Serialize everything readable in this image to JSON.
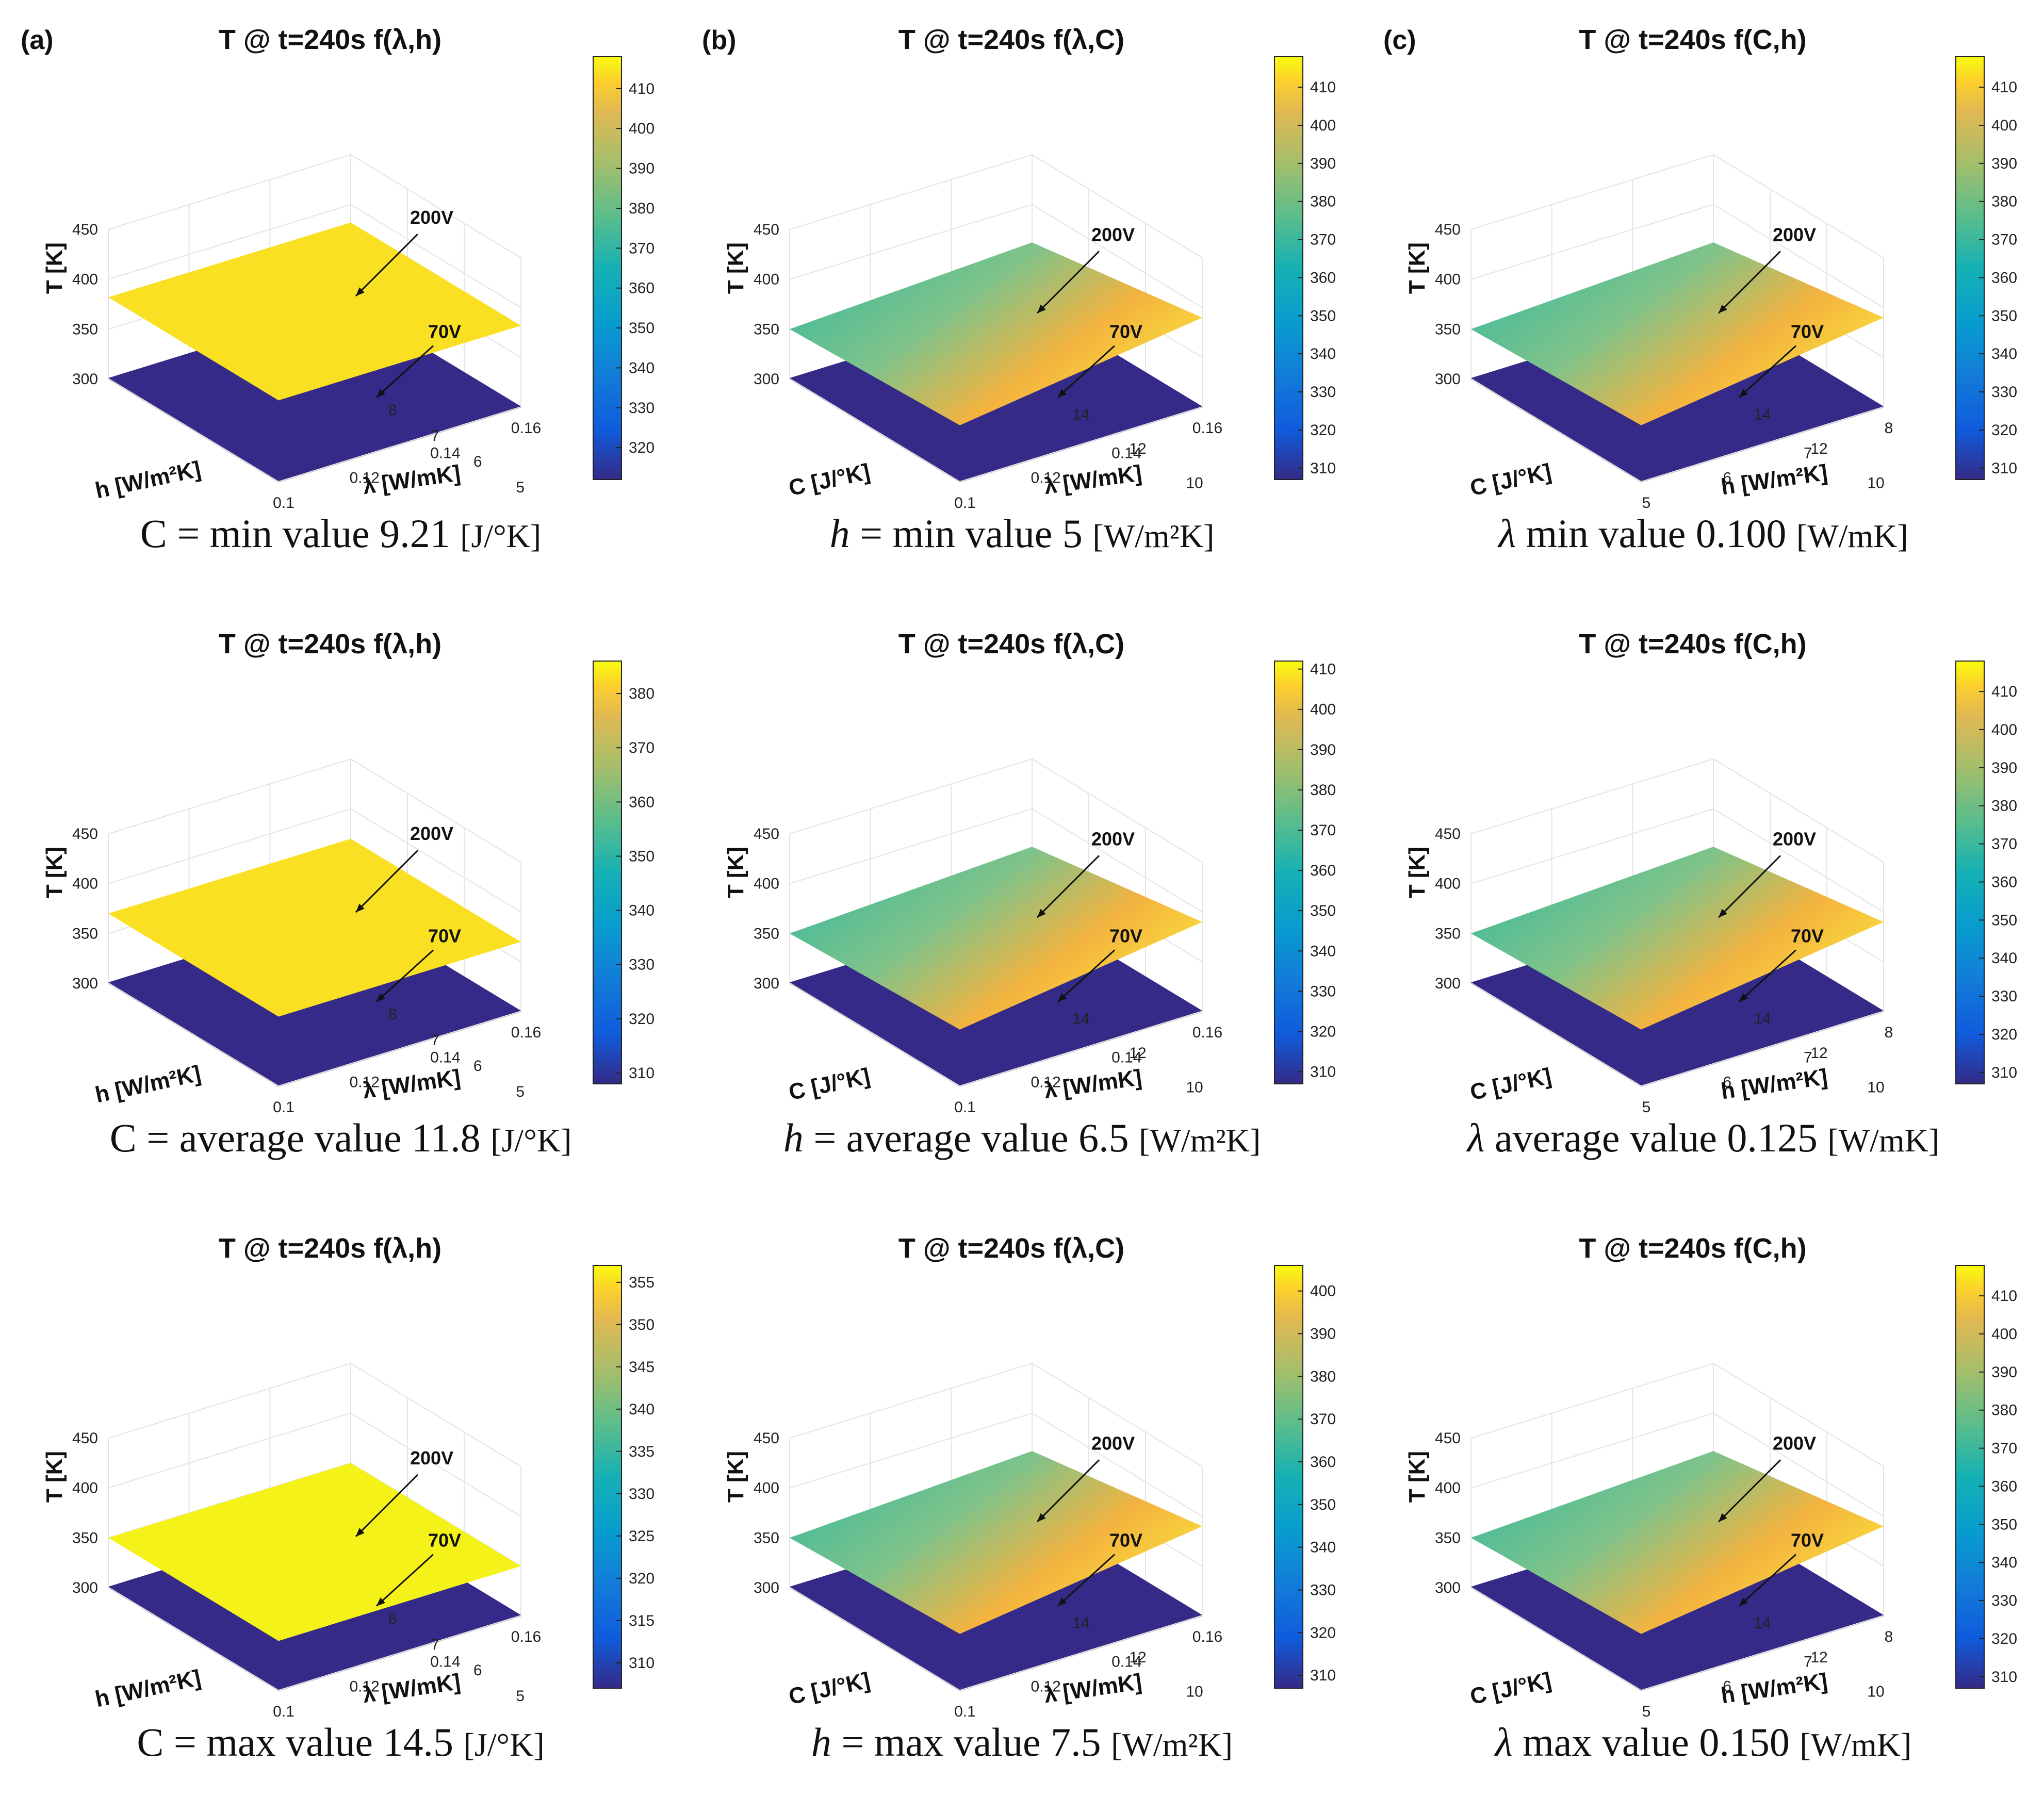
{
  "palette": {
    "low_plane": "#352a87",
    "yellow_plane": "#f9e022",
    "bright_yellow": "#f5f21a",
    "orange_mid": "#f4b33f",
    "teal": "#2db8a0",
    "axis": "#222222",
    "grid": "#e4e4e4"
  },
  "panels": [
    {
      "key": "a1",
      "label": "(a)",
      "type": "lh",
      "title": "T @ t=240s f(λ,h)",
      "cbar": [
        320,
        330,
        340,
        350,
        360,
        370,
        380,
        390,
        400,
        410
      ],
      "cmin": 312,
      "cmax": 418,
      "upperT": 382,
      "lowerT": 301,
      "style": "flat-yellow",
      "lbl200": "200V",
      "lbl70": "70V",
      "caption": {
        "pre": "C = min value 9.21 ",
        "unit": "[J/°K]"
      }
    },
    {
      "key": "b1",
      "label": "(b)",
      "type": "lc",
      "title": "T @ t=240s f(λ,C)",
      "cbar": [
        310,
        320,
        330,
        340,
        350,
        360,
        370,
        380,
        390,
        400,
        410
      ],
      "cmin": 307,
      "cmax": 418,
      "upperT": 362,
      "lowerT": 301,
      "style": "gradient",
      "lbl200": "200V",
      "lbl70": "70V",
      "caption": {
        "var": "h",
        "pre": " = min value 5 ",
        "unit": "[W/m²K]"
      }
    },
    {
      "key": "c1",
      "label": "(c)",
      "type": "ch",
      "title": "T @ t=240s f(C,h)",
      "cbar": [
        310,
        320,
        330,
        340,
        350,
        360,
        370,
        380,
        390,
        400,
        410
      ],
      "cmin": 307,
      "cmax": 418,
      "upperT": 362,
      "lowerT": 301,
      "style": "gradient",
      "lbl200": "200V",
      "lbl70": "70V",
      "caption": {
        "var": "λ",
        "pre": " min value 0.100 ",
        "unit": "[W/mK]"
      }
    },
    {
      "key": "a2",
      "label": "",
      "type": "lh",
      "title": "T @ t=240s f(λ,h)",
      "cbar": [
        310,
        320,
        330,
        340,
        350,
        360,
        370,
        380
      ],
      "cmin": 308,
      "cmax": 386,
      "upperT": 370,
      "lowerT": 301,
      "style": "flat-yellow",
      "lbl200": "200V",
      "lbl70": "70V",
      "caption": {
        "pre": "C = average value 11.8 ",
        "unit": "[J/°K]"
      }
    },
    {
      "key": "b2",
      "label": "",
      "type": "lc",
      "title": "T @ t=240s f(λ,C)",
      "cbar": [
        310,
        320,
        330,
        340,
        350,
        360,
        370,
        380,
        390,
        400,
        410
      ],
      "cmin": 307,
      "cmax": 412,
      "upperT": 362,
      "lowerT": 301,
      "style": "gradient",
      "lbl200": "200V",
      "lbl70": "70V",
      "caption": {
        "var": "h",
        "pre": " = average value 6.5 ",
        "unit": "[W/m²K]"
      }
    },
    {
      "key": "c2",
      "label": "",
      "type": "ch",
      "title": "T @ t=240s f(C,h)",
      "cbar": [
        310,
        320,
        330,
        340,
        350,
        360,
        370,
        380,
        390,
        400,
        410
      ],
      "cmin": 307,
      "cmax": 418,
      "upperT": 362,
      "lowerT": 301,
      "style": "gradient",
      "lbl200": "200V",
      "lbl70": "70V",
      "caption": {
        "var": "λ",
        "pre": " average value 0.125 ",
        "unit": "[W/mK]"
      }
    },
    {
      "key": "a3",
      "label": "",
      "type": "lh",
      "title": "T @ t=240s f(λ,h)",
      "cbar": [
        310,
        315,
        320,
        325,
        330,
        335,
        340,
        345,
        350,
        355
      ],
      "cmin": 307,
      "cmax": 357,
      "upperT": 350,
      "lowerT": 301,
      "style": "bright-yellow",
      "lbl200": "200V",
      "lbl70": "70V",
      "caption": {
        "pre": "C = max value 14.5 ",
        "unit": "[J/°K]"
      }
    },
    {
      "key": "b3",
      "label": "",
      "type": "lc",
      "title": "T @ t=240s f(λ,C)",
      "cbar": [
        310,
        320,
        330,
        340,
        350,
        360,
        370,
        380,
        390,
        400
      ],
      "cmin": 307,
      "cmax": 406,
      "upperT": 362,
      "lowerT": 301,
      "style": "gradient",
      "lbl200": "200V",
      "lbl70": "70V",
      "caption": {
        "var": "h",
        "pre": " = max value 7.5 ",
        "unit": "[W/m²K]"
      }
    },
    {
      "key": "c3",
      "label": "",
      "type": "ch",
      "title": "T @ t=240s f(C,h)",
      "cbar": [
        310,
        320,
        330,
        340,
        350,
        360,
        370,
        380,
        390,
        400,
        410
      ],
      "cmin": 307,
      "cmax": 418,
      "upperT": 362,
      "lowerT": 301,
      "style": "gradient",
      "lbl200": "200V",
      "lbl70": "70V",
      "caption": {
        "var": "λ",
        "pre": " max value 0.150 ",
        "unit": "[W/mK]"
      }
    }
  ],
  "axes": {
    "T_label": "T [K]",
    "T_ticks": [
      "300",
      "350",
      "400",
      "450"
    ],
    "lh": {
      "left_label": "h [W/m²K]",
      "left_ticks": [
        "5",
        "6",
        "7",
        "8"
      ],
      "right_label": "λ [W/mK]",
      "right_ticks": [
        "0.1",
        "0.12",
        "0.14",
        "0.16"
      ]
    },
    "lc": {
      "left_label": "C [J/°K]",
      "left_ticks": [
        "10",
        "12",
        "14"
      ],
      "right_label": "λ [W/mK]",
      "right_ticks": [
        "0.1",
        "0.12",
        "0.14",
        "0.16"
      ]
    },
    "ch": {
      "left_label": "C [J/°K]",
      "left_ticks": [
        "10",
        "12",
        "14"
      ],
      "right_label": "h [W/m²K]",
      "right_ticks": [
        "5",
        "6",
        "7",
        "8"
      ]
    }
  },
  "chart_data": [
    {
      "type": "surface",
      "title": "T @ t=240s f(λ,h)",
      "fixed": "C = min value 9.21 [J/°K]",
      "xlabel": "λ [W/mK]",
      "ylabel": "h [W/m²K]",
      "zlabel": "T [K]",
      "xlim": [
        0.1,
        0.16
      ],
      "ylim": [
        5,
        8
      ],
      "zlim": [
        300,
        450
      ],
      "series": [
        {
          "name": "200V",
          "approx_T": 382
        },
        {
          "name": "70V",
          "approx_T": 301
        }
      ],
      "colorbar": [
        320,
        410
      ]
    },
    {
      "type": "surface",
      "title": "T @ t=240s f(λ,C)",
      "fixed": "h = min value 5 [W/m²K]",
      "xlabel": "λ [W/mK]",
      "ylabel": "C [J/°K]",
      "zlabel": "T [K]",
      "xlim": [
        0.1,
        0.16
      ],
      "ylim": [
        9,
        15
      ],
      "zlim": [
        300,
        450
      ],
      "series": [
        {
          "name": "200V",
          "approx_T_range": [
            350,
            418
          ]
        },
        {
          "name": "70V",
          "approx_T": 301
        }
      ],
      "colorbar": [
        310,
        410
      ]
    },
    {
      "type": "surface",
      "title": "T @ t=240s f(C,h)",
      "fixed": "λ min value 0.100 [W/mK]",
      "xlabel": "h [W/m²K]",
      "ylabel": "C [J/°K]",
      "zlabel": "T [K]",
      "xlim": [
        5,
        8
      ],
      "ylim": [
        9,
        15
      ],
      "zlim": [
        300,
        450
      ],
      "series": [
        {
          "name": "200V",
          "approx_T_range": [
            350,
            418
          ]
        },
        {
          "name": "70V",
          "approx_T": 301
        }
      ],
      "colorbar": [
        310,
        410
      ]
    },
    {
      "type": "surface",
      "title": "T @ t=240s f(λ,h)",
      "fixed": "C = average value 11.8 [J/°K]",
      "xlabel": "λ [W/mK]",
      "ylabel": "h [W/m²K]",
      "zlabel": "T [K]",
      "xlim": [
        0.1,
        0.16
      ],
      "ylim": [
        5,
        8
      ],
      "zlim": [
        300,
        450
      ],
      "series": [
        {
          "name": "200V",
          "approx_T": 370
        },
        {
          "name": "70V",
          "approx_T": 301
        }
      ],
      "colorbar": [
        310,
        380
      ]
    },
    {
      "type": "surface",
      "title": "T @ t=240s f(λ,C)",
      "fixed": "h = average value 6.5 [W/m²K]",
      "xlabel": "λ [W/mK]",
      "ylabel": "C [J/°K]",
      "zlabel": "T [K]",
      "xlim": [
        0.1,
        0.16
      ],
      "ylim": [
        9,
        15
      ],
      "zlim": [
        300,
        450
      ],
      "series": [
        {
          "name": "200V",
          "approx_T_range": [
            350,
            412
          ]
        },
        {
          "name": "70V",
          "approx_T": 301
        }
      ],
      "colorbar": [
        310,
        410
      ]
    },
    {
      "type": "surface",
      "title": "T @ t=240s f(C,h)",
      "fixed": "λ average value 0.125 [W/mK]",
      "xlabel": "h [W/m²K]",
      "ylabel": "C [J/°K]",
      "zlabel": "T [K]",
      "xlim": [
        5,
        8
      ],
      "ylim": [
        9,
        15
      ],
      "zlim": [
        300,
        450
      ],
      "series": [
        {
          "name": "200V",
          "approx_T_range": [
            350,
            418
          ]
        },
        {
          "name": "70V",
          "approx_T": 301
        }
      ],
      "colorbar": [
        310,
        410
      ]
    },
    {
      "type": "surface",
      "title": "T @ t=240s f(λ,h)",
      "fixed": "C = max value 14.5 [J/°K]",
      "xlabel": "λ [W/mK]",
      "ylabel": "h [W/m²K]",
      "zlabel": "T [K]",
      "xlim": [
        0.1,
        0.16
      ],
      "ylim": [
        5,
        8
      ],
      "zlim": [
        300,
        450
      ],
      "series": [
        {
          "name": "200V",
          "approx_T": 350
        },
        {
          "name": "70V",
          "approx_T": 301
        }
      ],
      "colorbar": [
        310,
        355
      ]
    },
    {
      "type": "surface",
      "title": "T @ t=240s f(λ,C)",
      "fixed": "h = max value 7.5 [W/m²K]",
      "xlabel": "λ [W/mK]",
      "ylabel": "C [J/°K]",
      "zlabel": "T [K]",
      "xlim": [
        0.1,
        0.16
      ],
      "ylim": [
        9,
        15
      ],
      "zlim": [
        300,
        450
      ],
      "series": [
        {
          "name": "200V",
          "approx_T_range": [
            350,
            406
          ]
        },
        {
          "name": "70V",
          "approx_T": 301
        }
      ],
      "colorbar": [
        310,
        400
      ]
    },
    {
      "type": "surface",
      "title": "T @ t=240s f(C,h)",
      "fixed": "λ max value 0.150 [W/mK]",
      "xlabel": "h [W/m²K]",
      "ylabel": "C [J/°K]",
      "zlabel": "T [K]",
      "xlim": [
        5,
        8
      ],
      "ylim": [
        9,
        15
      ],
      "zlim": [
        300,
        450
      ],
      "series": [
        {
          "name": "200V",
          "approx_T_range": [
            350,
            418
          ]
        },
        {
          "name": "70V",
          "approx_T": 301
        }
      ],
      "colorbar": [
        310,
        410
      ]
    }
  ]
}
